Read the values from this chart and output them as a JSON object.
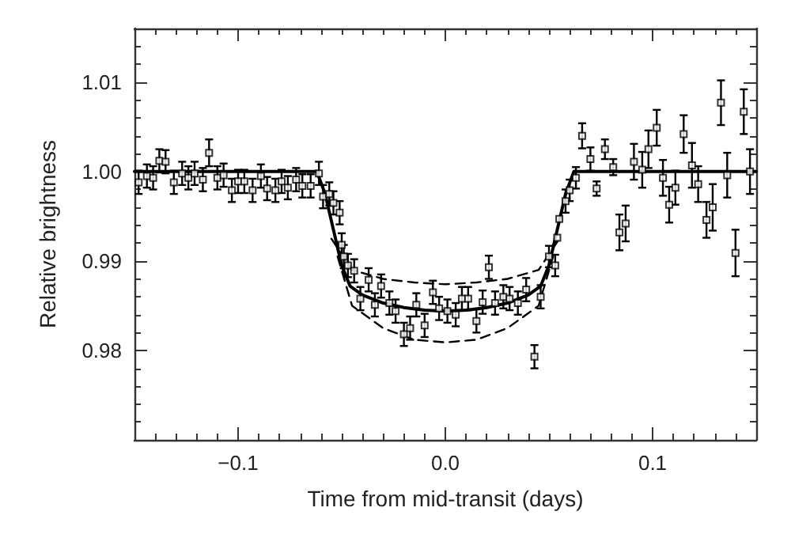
{
  "chart_data": {
    "type": "scatter",
    "xlabel": "Time from mid-transit (days)",
    "ylabel": "Relative brightness",
    "grid": false,
    "xlim": [
      -0.15,
      0.15
    ],
    "ylim": [
      0.97,
      1.016
    ],
    "xticks": [
      {
        "value": -0.14,
        "label": null
      },
      {
        "value": -0.13,
        "label": null
      },
      {
        "value": -0.12,
        "label": null
      },
      {
        "value": -0.11,
        "label": null
      },
      {
        "value": -0.1,
        "label": "−0.1"
      },
      {
        "value": -0.09,
        "label": null
      },
      {
        "value": -0.08,
        "label": null
      },
      {
        "value": -0.07,
        "label": null
      },
      {
        "value": -0.06,
        "label": null
      },
      {
        "value": -0.05,
        "label": null
      },
      {
        "value": -0.04,
        "label": null
      },
      {
        "value": -0.03,
        "label": null
      },
      {
        "value": -0.02,
        "label": null
      },
      {
        "value": -0.01,
        "label": null
      },
      {
        "value": 0,
        "label": "0.0"
      },
      {
        "value": 0.01,
        "label": null
      },
      {
        "value": 0.02,
        "label": null
      },
      {
        "value": 0.03,
        "label": null
      },
      {
        "value": 0.04,
        "label": null
      },
      {
        "value": 0.05,
        "label": null
      },
      {
        "value": 0.06,
        "label": null
      },
      {
        "value": 0.07,
        "label": null
      },
      {
        "value": 0.08,
        "label": null
      },
      {
        "value": 0.09,
        "label": null
      },
      {
        "value": 0.1,
        "label": "0.1"
      },
      {
        "value": 0.11,
        "label": null
      },
      {
        "value": 0.12,
        "label": null
      },
      {
        "value": 0.13,
        "label": null
      },
      {
        "value": 0.14,
        "label": null
      }
    ],
    "yticks": [
      {
        "value": 0.972,
        "label": null
      },
      {
        "value": 0.974,
        "label": null
      },
      {
        "value": 0.976,
        "label": null
      },
      {
        "value": 0.978,
        "label": null
      },
      {
        "value": 0.98,
        "label": "0.98"
      },
      {
        "value": 0.982,
        "label": null
      },
      {
        "value": 0.984,
        "label": null
      },
      {
        "value": 0.986,
        "label": null
      },
      {
        "value": 0.988,
        "label": null
      },
      {
        "value": 0.99,
        "label": "0.99"
      },
      {
        "value": 0.992,
        "label": null
      },
      {
        "value": 0.994,
        "label": null
      },
      {
        "value": 0.996,
        "label": null
      },
      {
        "value": 0.998,
        "label": null
      },
      {
        "value": 1.0,
        "label": "1.00"
      },
      {
        "value": 1.002,
        "label": null
      },
      {
        "value": 1.004,
        "label": null
      },
      {
        "value": 1.006,
        "label": null
      },
      {
        "value": 1.008,
        "label": null
      },
      {
        "value": 1.01,
        "label": "1.01"
      },
      {
        "value": 1.012,
        "label": null
      },
      {
        "value": 1.014,
        "label": null
      }
    ],
    "series": [
      {
        "color": "#000000",
        "marker": "square",
        "x": [
          -0.148,
          -0.144,
          -0.141,
          -0.138,
          -0.135,
          -0.131,
          -0.127,
          -0.124,
          -0.121,
          -0.117,
          -0.114,
          -0.11,
          -0.107,
          -0.103,
          -0.1,
          -0.097,
          -0.093,
          -0.089,
          -0.086,
          -0.082,
          -0.079,
          -0.076,
          -0.072,
          -0.069,
          -0.065,
          -0.061,
          -0.059,
          -0.056,
          -0.054,
          -0.051,
          -0.05,
          -0.049,
          -0.047,
          -0.044,
          -0.041,
          -0.037,
          -0.034,
          -0.031,
          -0.027,
          -0.024,
          -0.02,
          -0.017,
          -0.014,
          -0.01,
          -0.006,
          -0.003,
          0.001,
          0.005,
          0.008,
          0.011,
          0.015,
          0.018,
          0.021,
          0.024,
          0.028,
          0.031,
          0.035,
          0.039,
          0.043,
          0.046,
          0.05,
          0.053,
          0.054,
          0.055,
          0.058,
          0.06,
          0.063,
          0.066,
          0.07,
          0.073,
          0.077,
          0.081,
          0.084,
          0.087,
          0.091,
          0.095,
          0.098,
          0.102,
          0.105,
          0.108,
          0.111,
          0.115,
          0.119,
          0.122,
          0.126,
          0.129,
          0.133,
          0.136,
          0.14,
          0.144,
          0.147
        ],
        "values": [
          0.9988,
          0.9995,
          0.9993,
          1.0012,
          1.0011,
          0.9988,
          0.9998,
          0.9993,
          0.9998,
          0.9991,
          1.0021,
          0.9993,
          0.9996,
          0.9979,
          0.9989,
          0.9989,
          0.9979,
          0.9995,
          0.9981,
          0.9979,
          0.9989,
          0.9982,
          0.9991,
          0.9984,
          0.9984,
          0.9998,
          0.9972,
          0.9975,
          0.9965,
          0.9954,
          0.9918,
          0.9905,
          0.9895,
          0.9889,
          0.9858,
          0.9879,
          0.9851,
          0.9872,
          0.9853,
          0.9844,
          0.9818,
          0.9825,
          0.9851,
          0.9828,
          0.9865,
          0.9847,
          0.9844,
          0.984,
          0.9858,
          0.9858,
          0.9833,
          0.9854,
          0.9893,
          0.9853,
          0.986,
          0.9858,
          0.9853,
          0.9868,
          0.9793,
          0.986,
          0.9905,
          0.9895,
          0.9926,
          0.9947,
          0.9967,
          0.9979,
          0.9993,
          1.004,
          1.0014,
          0.9981,
          1.0025,
          1.0005,
          0.9932,
          0.9942,
          1.0011,
          1.0002,
          1.0025,
          1.0049,
          0.9993,
          0.9963,
          0.9982,
          1.0042,
          1.0007,
          0.9986,
          0.9946,
          0.996,
          1.0077,
          0.9996,
          0.9909,
          1.0067,
          1.0
        ],
        "errors": [
          0.0013,
          0.0013,
          0.0013,
          0.0013,
          0.0013,
          0.0013,
          0.0013,
          0.0013,
          0.0013,
          0.0013,
          0.0015,
          0.0013,
          0.0013,
          0.0013,
          0.0013,
          0.0013,
          0.0013,
          0.0013,
          0.0013,
          0.0013,
          0.0013,
          0.0013,
          0.0013,
          0.0013,
          0.0013,
          0.0013,
          0.0013,
          0.0013,
          0.0013,
          0.0013,
          0.0013,
          0.0013,
          0.0013,
          0.0013,
          0.0013,
          0.0013,
          0.0013,
          0.0013,
          0.0013,
          0.0013,
          0.0013,
          0.0013,
          0.0013,
          0.0013,
          0.0013,
          0.0013,
          0.0013,
          0.0013,
          0.0013,
          0.0013,
          0.0013,
          0.0013,
          0.0013,
          0.0013,
          0.0013,
          0.0013,
          0.0013,
          0.0013,
          0.0013,
          0.0013,
          0.0012,
          0.0012,
          null,
          null,
          0.0013,
          0.0012,
          0.0012,
          0.0014,
          0.0013,
          0.0008,
          0.0011,
          0.0009,
          0.002,
          0.002,
          0.002,
          0.002,
          0.0021,
          0.002,
          0.002,
          0.002,
          0.0019,
          0.0021,
          0.0025,
          0.002,
          0.002,
          0.0026,
          0.0025,
          0.0025,
          0.0026,
          0.0025,
          0.0025
        ]
      },
      {
        "type": "line",
        "color": "#000000",
        "line_style": "solid",
        "x": [
          -0.15,
          -0.062,
          -0.058,
          -0.054,
          -0.05,
          -0.046,
          -0.04,
          -0.03,
          -0.02,
          -0.01,
          0,
          0.01,
          0.02,
          0.03,
          0.04,
          0.046,
          0.05,
          0.054,
          0.058,
          0.062,
          0.15
        ],
        "values": [
          1.0,
          1.0,
          0.9975,
          0.9935,
          0.9895,
          0.9872,
          0.9862,
          0.9853,
          0.9848,
          0.9845,
          0.9844,
          0.9845,
          0.9848,
          0.9853,
          0.9862,
          0.9872,
          0.9895,
          0.9935,
          0.9975,
          1.0,
          1.0
        ]
      },
      {
        "type": "line",
        "color": "#000000",
        "line_style": "dashed",
        "x": [
          -0.055,
          -0.045,
          -0.03,
          -0.015,
          0,
          0.015,
          0.03,
          0.045,
          0.055
        ],
        "values": [
          0.9925,
          0.989,
          0.988,
          0.9876,
          0.9874,
          0.9876,
          0.988,
          0.989,
          0.9925
        ]
      },
      {
        "type": "line",
        "color": "#000000",
        "line_style": "dashed",
        "x": [
          -0.052,
          -0.045,
          -0.03,
          -0.015,
          0,
          0.015,
          0.03,
          0.045,
          0.052
        ],
        "values": [
          0.9905,
          0.985,
          0.9825,
          0.9812,
          0.9809,
          0.9812,
          0.9825,
          0.985,
          0.9905
        ]
      }
    ]
  }
}
